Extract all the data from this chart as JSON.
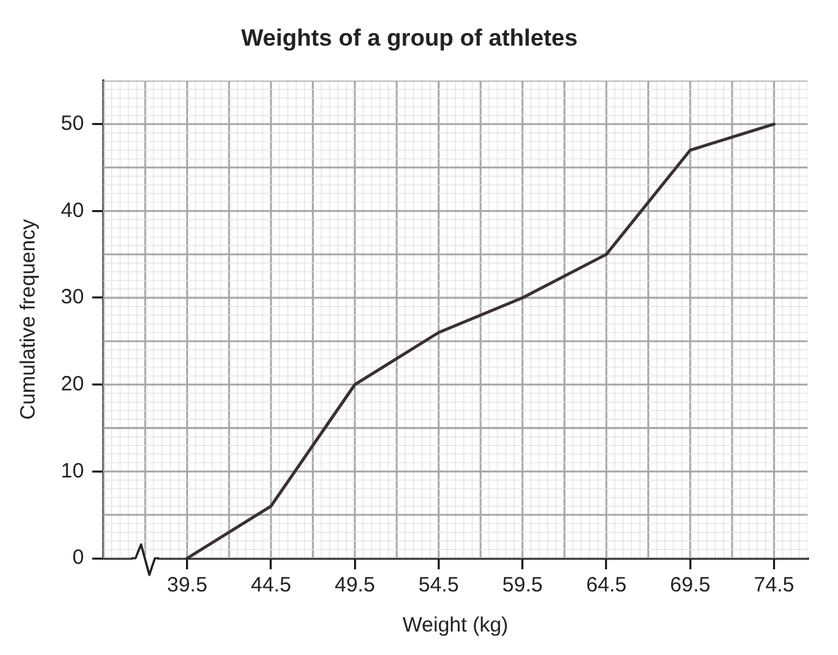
{
  "chart_data": {
    "type": "line",
    "title": "Weights of a group of athletes",
    "xlabel": "Weight (kg)",
    "ylabel": "Cumulative frequency",
    "x": [
      39.5,
      44.5,
      49.5,
      54.5,
      59.5,
      64.5,
      69.5,
      74.5
    ],
    "series": [
      {
        "color": "#3a3030",
        "values": [
          0,
          6,
          20,
          26,
          30,
          35,
          47,
          50
        ]
      }
    ],
    "xlim": [
      34.5,
      76.5
    ],
    "xticks": [
      39.5,
      44.5,
      49.5,
      54.5,
      59.5,
      64.5,
      69.5,
      74.5
    ],
    "ylim": [
      0,
      55
    ],
    "yticks": [
      0,
      10,
      20,
      30,
      40,
      50
    ],
    "grid": true,
    "legend": false,
    "marker": "none",
    "line_style": "solid"
  }
}
